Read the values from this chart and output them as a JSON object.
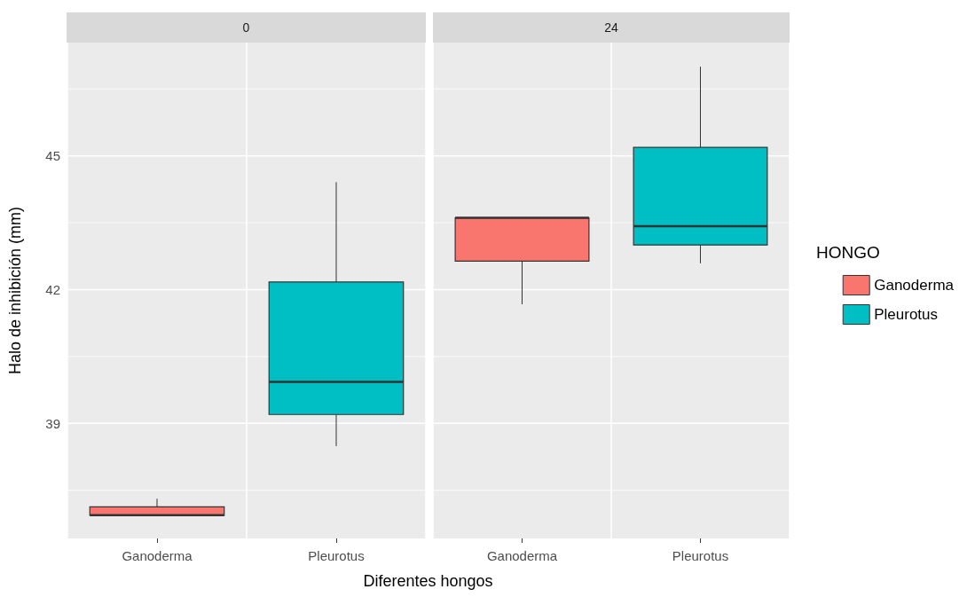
{
  "chart_data": [
    {
      "type": "box",
      "title": "0",
      "xlabel": "Diferentes hongos",
      "ylabel": "Halo de inhibición (mm)",
      "categories": [
        "Ganoderma",
        "Pleurotus"
      ],
      "ylim": [
        36.42,
        47.54
      ],
      "yticks": [
        {
          "value": 37.5,
          "label": null
        },
        39,
        {
          "value": 40.5,
          "label": null
        },
        42,
        {
          "value": 43.5,
          "label": null
        },
        45,
        {
          "value": 46.5,
          "label": null
        }
      ],
      "grid": true,
      "legend": false,
      "series": [
        {
          "color": "#f8766d",
          "boxes": [
            {
              "low": 36.94,
              "q1": 36.94,
              "median": 36.94,
              "q3": 37.13,
              "high": 37.31
            },
            null
          ]
        },
        {
          "color": "#00bfc4",
          "boxes": [
            null,
            {
              "low": 38.49,
              "q1": 39.2,
              "median": 39.93,
              "q3": 42.17,
              "high": 44.41
            }
          ]
        }
      ]
    },
    {
      "type": "box",
      "title": "24",
      "categories": [
        "Ganoderma",
        "Pleurotus"
      ],
      "ylim": [
        36.42,
        47.54
      ],
      "yticks": [
        {
          "value": 37.5,
          "label": null
        },
        39,
        {
          "value": 40.5,
          "label": null
        },
        42,
        {
          "value": 43.5,
          "label": null
        },
        45,
        {
          "value": 46.5,
          "label": null
        }
      ],
      "tick_labels": "x",
      "grid": true,
      "legend": "right",
      "legend_title": "HONGO",
      "series": [
        {
          "name": "Ganoderma",
          "color": "#f8766d",
          "boxes": [
            {
              "low": 41.67,
              "q1": 42.64,
              "median": 43.61,
              "q3": 43.61,
              "high": 43.61
            },
            null
          ]
        },
        {
          "name": "Pleurotus",
          "color": "#00bfc4",
          "boxes": [
            null,
            {
              "low": 42.59,
              "q1": 43.0,
              "median": 43.42,
              "q3": 45.19,
              "high": 47.0
            }
          ]
        }
      ]
    }
  ]
}
